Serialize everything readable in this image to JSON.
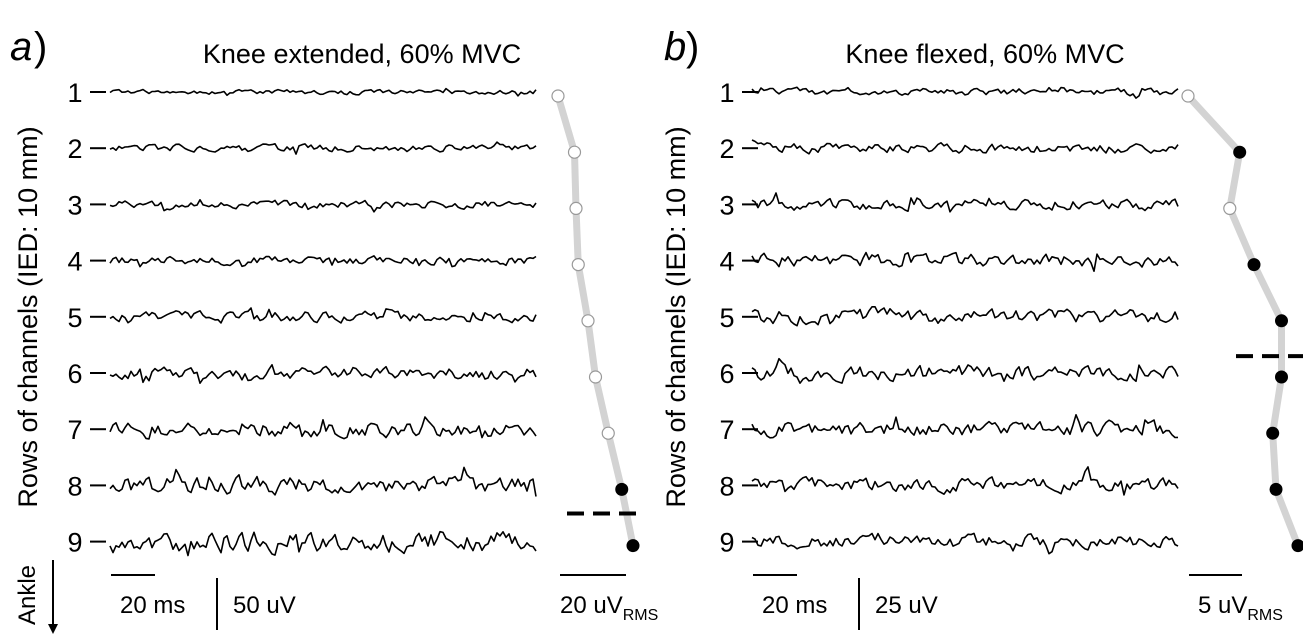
{
  "panels": [
    {
      "letter": "a",
      "paren": ")",
      "title": "Knee extended, 60% MVC",
      "rows": [
        "1",
        "2",
        "3",
        "4",
        "5",
        "6",
        "7",
        "8",
        "9"
      ],
      "rms_values": [
        0.0,
        0.22,
        0.24,
        0.27,
        0.4,
        0.5,
        0.67,
        0.85,
        1.0
      ],
      "rms_filled": [
        false,
        false,
        false,
        false,
        false,
        false,
        false,
        true,
        true
      ],
      "dashed_threshold_row": 8.5,
      "trace_amplitude": [
        0.25,
        0.4,
        0.42,
        0.45,
        0.55,
        0.65,
        0.8,
        0.95,
        1.15
      ],
      "time_scale": "20 ms",
      "amp_scale": "50 uV",
      "rms_scale_prefix": "20 uV",
      "rms_scale_sub": "RMS"
    },
    {
      "letter": "b",
      "paren": ")",
      "title": "Knee flexed, 60% MVC",
      "rows": [
        "1",
        "2",
        "3",
        "4",
        "5",
        "6",
        "7",
        "8",
        "9"
      ],
      "rms_values": [
        0.0,
        0.47,
        0.38,
        0.6,
        0.85,
        0.85,
        0.77,
        0.8,
        1.0
      ],
      "rms_filled": [
        false,
        true,
        false,
        true,
        true,
        true,
        true,
        true,
        true
      ],
      "dashed_threshold_row": 5.7,
      "trace_amplitude": [
        0.45,
        0.6,
        0.7,
        0.8,
        0.9,
        0.95,
        0.95,
        0.85,
        0.85
      ],
      "time_scale": "20 ms",
      "amp_scale": "25 uV",
      "rms_scale_prefix": "5 uV",
      "rms_scale_sub": "RMS"
    }
  ],
  "y_axis_label": "Rows of channels (IED: 10 mm)",
  "ankle_label": "Ankle"
}
